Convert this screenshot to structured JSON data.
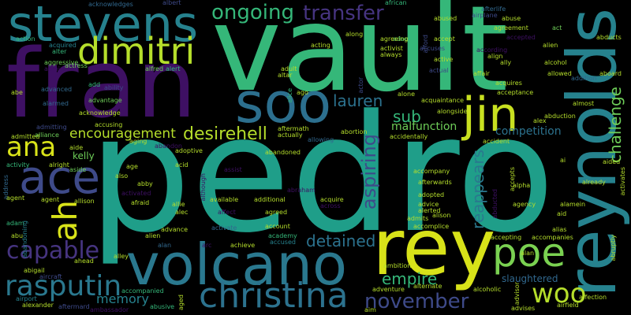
{
  "cloud": {
    "background": "#000000",
    "palette": {
      "purple": "#440154",
      "indigo": "#482777",
      "violet": "#3e4a89",
      "blue": "#31688e",
      "steel": "#26828e",
      "teal": "#1f9e89",
      "green": "#35b779",
      "lime": "#6ece58",
      "yellow": "#b5de2b",
      "gold": "#fde725"
    },
    "words": {
      "pedro": "pedro",
      "vault": "vault",
      "fran": "fran",
      "reynolds": "reynolds",
      "rey": "rey",
      "volcano": "volcano",
      "stevens": "stevens",
      "soo": "soo",
      "ace": "ace",
      "dimitri": "dimitri",
      "jin": "jin",
      "christina": "christina",
      "poe": "poe",
      "rasputin": "rasputin",
      "capable": "capable",
      "ana": "ana",
      "ah": "ah",
      "woo": "woo",
      "november": "november",
      "transfer": "transfer",
      "ongoing": "ongoing",
      "aspiring": "aspiring",
      "reappears": "reappears",
      "challenge": "challenge",
      "desirehell": "desirehell",
      "encouragement": "encouragement",
      "lauren": "lauren",
      "sub": "sub",
      "detained": "detained",
      "empire": "empire",
      "memory": "memory",
      "malfunction": "malfunction",
      "competition": "competition",
      "kelly": "kelly",
      "slaughtered": "slaughtered",
      "acknowledges": "acknowledges",
      "albert": "albert",
      "african": "african",
      "afterlife": "afterlife",
      "airplane": "airplane",
      "act": "act",
      "action": "action",
      "acquired": "acquired",
      "alter": "alter",
      "aggressive": "aggressive",
      "admiration": "admiration",
      "actress": "actress",
      "add": "add",
      "ability": "ability",
      "alfred": "alfred",
      "alert": "alert",
      "abe": "abe",
      "advanced": "advanced",
      "advantage": "advantage",
      "acknowledge": "acknowledge",
      "accusing": "accusing",
      "aging": "aging",
      "alliance": "alliance",
      "admitted": "admitted",
      "admitting": "admitting",
      "abandon": "abandon",
      "aside": "aside",
      "alright": "alright",
      "activity": "activity",
      "address": "address",
      "agent": "agent",
      "adam": "adam",
      "abu": "abu",
      "abandoning": "abandoning",
      "abigail": "abigail",
      "aircraft": "aircraft",
      "airport": "airport",
      "alexander": "alexander",
      "aftermard": "aftermard",
      "ambassador": "ambassador",
      "ahead": "ahead",
      "accompanied": "accompanied",
      "abusive": "abusive",
      "aged": "aged",
      "alley": "alley",
      "alien": "alien",
      "alan": "alan",
      "advance": "advance",
      "activate": "activate",
      "affect": "affect",
      "available": "available",
      "allie": "allie",
      "alec": "alec",
      "additional": "additional",
      "account": "account",
      "achieve": "achieve",
      "academy": "academy",
      "accused": "accused",
      "agreed": "agreed",
      "afraid": "afraid",
      "activated": "activated",
      "abby": "abby",
      "acid": "acid",
      "age": "age",
      "also": "also",
      "aide": "aide",
      "abandoned": "abandoned",
      "adoptive": "adoptive",
      "assist": "assist",
      "although": "although",
      "abraham": "abraham",
      "acquire": "acquire",
      "across": "across",
      "acting": "acting",
      "adult": "adult",
      "altar": "altar",
      "ago": "ago",
      "alice": "alice",
      "along": "along",
      "adopt": "adopt",
      "afford": "afford",
      "agreeing": "agreeing",
      "activist": "activist",
      "always": "always",
      "accuses": "accuses",
      "actual": "actual",
      "actor": "actor",
      "alone": "alone",
      "aftermath": "aftermath",
      "actually": "actually",
      "allowing": "allowing",
      "abortion": "abortion",
      "accidentally": "accidentally",
      "accompany": "accompany",
      "afterwards": "afterwards",
      "adopted": "adopted",
      "advice": "advice",
      "alerted": "alerted",
      "admits": "admits",
      "accomplice": "accomplice",
      "alison": "alison",
      "ambition": "ambition",
      "adventure": "adventure",
      "alternate": "alternate",
      "aim": "aim",
      "abused": "abused",
      "accept": "accept",
      "active": "active",
      "affair": "affair",
      "acquaintance": "acquaintance",
      "alongside": "alongside",
      "according": "according",
      "abuse": "abuse",
      "agreement": "agreement",
      "accepted": "accepted",
      "align": "align",
      "ally": "ally",
      "acquires": "acquires",
      "acceptance": "acceptance",
      "accident": "accident",
      "alex": "alex",
      "abduction": "abduction",
      "alcohol": "alcohol",
      "allowed": "allowed",
      "addition": "addition",
      "aboard": "aboard",
      "abducts": "abducts",
      "almost": "almost",
      "activates": "activates",
      "aided": "aided",
      "already": "already",
      "ai": "ai",
      "alpha": "alpha",
      "accepts": "accepts",
      "agency": "agency",
      "alamein": "alamein",
      "aid": "aid",
      "alias": "alias",
      "accompanies": "accompanies",
      "accepting": "accepting",
      "abruptly": "abruptly",
      "alcoholic": "alcoholic",
      "advisor": "advisor",
      "affection": "affection",
      "airfield": "airfield",
      "advises": "advises",
      "abducted": "abducted",
      "alien2": "alien",
      "alan2": "alan",
      "agent2": "agent",
      "allison": "allison",
      "alarmed": "alarmed",
      "arc": "arc"
    }
  }
}
